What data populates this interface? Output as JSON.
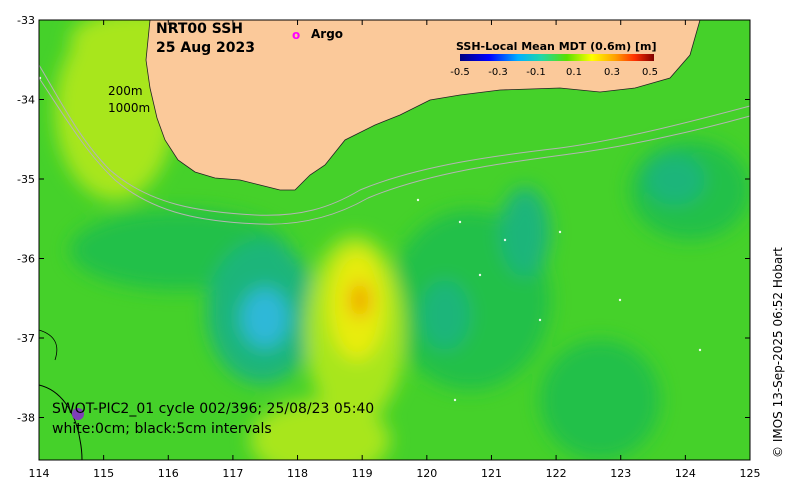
{
  "title": {
    "line1": "NRT00 SSH",
    "line2": "25 Aug 2023"
  },
  "argo_legend": {
    "marker": "o",
    "label": "Argo",
    "color": "#ff00ff"
  },
  "colorbar": {
    "title": "SSH-Local Mean MDT (0.6m) [m]",
    "tick_labels": [
      "-0.5",
      "-0.3",
      "-0.1",
      "0.1",
      "0.3",
      "0.5"
    ],
    "colors": [
      "#00007f",
      "#0000ff",
      "#0080ff",
      "#00d0ff",
      "#22d7a8",
      "#55e000",
      "#b0f000",
      "#ffff00",
      "#ffb000",
      "#ff5000",
      "#c00000",
      "#7f0000"
    ]
  },
  "depth_labels": {
    "shallow": "200m",
    "deep": "1000m"
  },
  "caption": {
    "line1": "SWOT-PIC2_01 cycle 002/396; 25/08/23 05:40",
    "line2": "white:0cm; black:5cm intervals"
  },
  "credit": "© IMOS 13-Sep-2025 06:52 Hobart",
  "x_axis": {
    "tick_labels": [
      "114",
      "115",
      "116",
      "117",
      "118",
      "119",
      "120",
      "121",
      "122",
      "123",
      "124",
      "125"
    ]
  },
  "y_axis": {
    "tick_labels": [
      "-33",
      "-34",
      "-35",
      "-36",
      "-37",
      "-38"
    ]
  },
  "colors": {
    "land": "#fbc99a",
    "sea_base": "#45d12a",
    "green_mid": "#22c04a",
    "teal": "#1fb57a",
    "light_blue": "#2fb8d8",
    "yellow_green": "#a8e61c",
    "yellow": "#e8ec10",
    "orange": "#f0a000",
    "shelf_line": "#b4b4b4"
  }
}
